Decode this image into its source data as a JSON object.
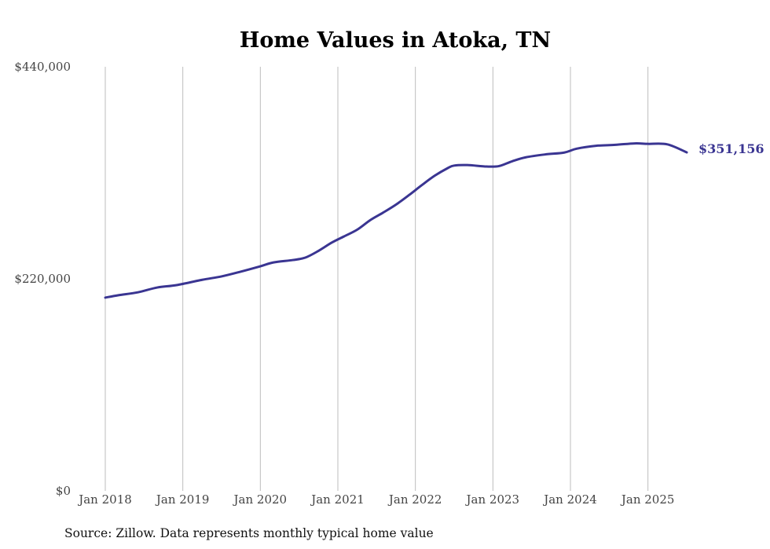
{
  "chart_data": {
    "type": "line",
    "title": "Home Values in Atoka, TN",
    "xlabel": "",
    "ylabel": "",
    "source_note": "Source: Zillow. Data represents monthly typical home value",
    "x_tick_labels": [
      "Jan 2018",
      "Jan 2019",
      "Jan 2020",
      "Jan 2021",
      "Jan 2022",
      "Jan 2023",
      "Jan 2024",
      "Jan 2025"
    ],
    "y_tick_labels": [
      "$0",
      "$220,000",
      "$440,000"
    ],
    "y_ticks": [
      0,
      220000,
      440000
    ],
    "ylim": [
      0,
      440000
    ],
    "x_range_years": [
      2018.0,
      2025.5
    ],
    "grid": {
      "vertical": true,
      "horizontal": false
    },
    "line_color": "#3a3592",
    "end_label": "$351,156",
    "series": [
      {
        "x": [
          2018.0,
          2018.17,
          2018.42,
          2018.67,
          2018.92,
          2019.25,
          2019.5,
          2019.75,
          2020.0,
          2020.17,
          2020.42,
          2020.58,
          2020.75,
          2020.92,
          2021.08,
          2021.25,
          2021.42,
          2021.58,
          2021.75,
          2021.92,
          2022.08,
          2022.25,
          2022.42,
          2022.5,
          2022.67,
          2022.92,
          2023.08,
          2023.25,
          2023.42,
          2023.67,
          2023.92,
          2024.08,
          2024.33,
          2024.58,
          2024.83,
          2025.0,
          2025.25,
          2025.5
        ],
        "y": [
          200500,
          203000,
          206000,
          211000,
          213500,
          219000,
          222500,
          227500,
          233000,
          237000,
          239500,
          242000,
          249000,
          257500,
          264000,
          271000,
          281000,
          288500,
          297000,
          307000,
          317000,
          327000,
          335000,
          337500,
          338000,
          336500,
          337000,
          342000,
          346000,
          349000,
          351000,
          355000,
          358000,
          359000,
          360500,
          360000,
          359500,
          351156
        ]
      }
    ]
  }
}
